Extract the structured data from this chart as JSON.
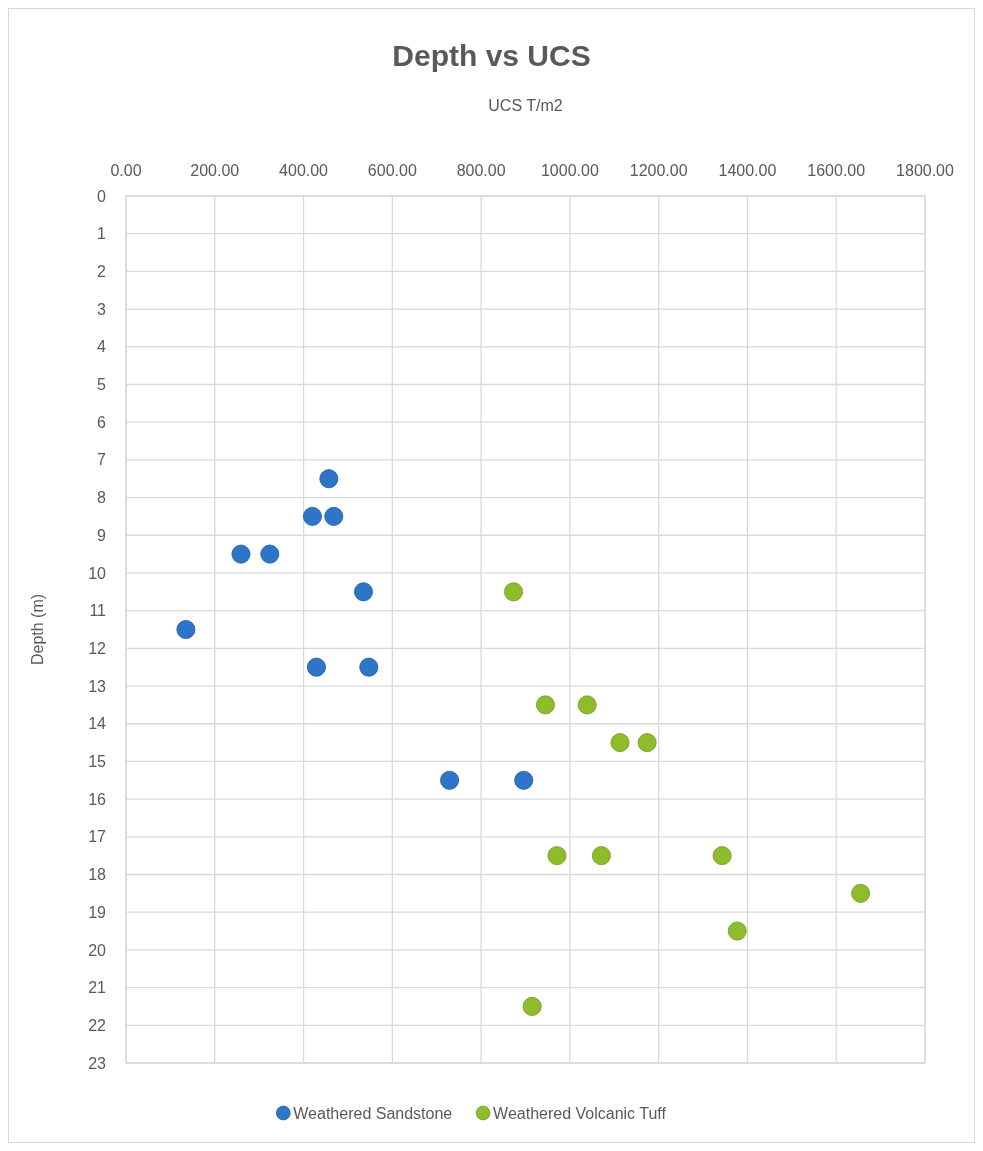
{
  "chart_data": {
    "type": "scatter",
    "title": "Depth vs UCS",
    "xlabel": "UCS T/m2",
    "ylabel": "Depth (m)",
    "xlim": [
      0,
      1800
    ],
    "xticks": [
      {
        "value": 0,
        "label": "0.00"
      },
      {
        "value": 200,
        "label": "200.00"
      },
      {
        "value": 400,
        "label": "400.00"
      },
      {
        "value": 600,
        "label": "600.00"
      },
      {
        "value": 800,
        "label": "800.00"
      },
      {
        "value": 1000,
        "label": "1000.00"
      },
      {
        "value": 1200,
        "label": "1200.00"
      },
      {
        "value": 1400,
        "label": "1400.00"
      },
      {
        "value": 1600,
        "label": "1600.00"
      },
      {
        "value": 1800,
        "label": "1800.00"
      }
    ],
    "ylim": [
      23,
      0
    ],
    "yticks": [
      0,
      1,
      2,
      3,
      4,
      5,
      6,
      7,
      8,
      9,
      10,
      11,
      12,
      13,
      14,
      15,
      16,
      17,
      18,
      19,
      20,
      21,
      22,
      23
    ],
    "grid": true,
    "legend": "bottom",
    "marker": "circle",
    "series": [
      {
        "name": "Weathered Sandstone",
        "color": "#2e75c9",
        "x": [
          457,
          420,
          468,
          259,
          324,
          535,
          135,
          429,
          547,
          729,
          896
        ],
        "values": [
          7.5,
          8.5,
          8.5,
          9.5,
          9.5,
          10.5,
          11.5,
          12.5,
          12.5,
          15.5,
          15.5
        ]
      },
      {
        "name": "Weathered Volcanic Tuff",
        "color": "#8fbc2a",
        "x": [
          873,
          945,
          1039,
          1113,
          1174,
          971,
          1071,
          1343,
          1655,
          1377,
          915
        ],
        "values": [
          10.5,
          13.5,
          13.5,
          14.5,
          14.5,
          17.5,
          17.5,
          17.5,
          18.5,
          19.5,
          21.5
        ]
      }
    ]
  }
}
